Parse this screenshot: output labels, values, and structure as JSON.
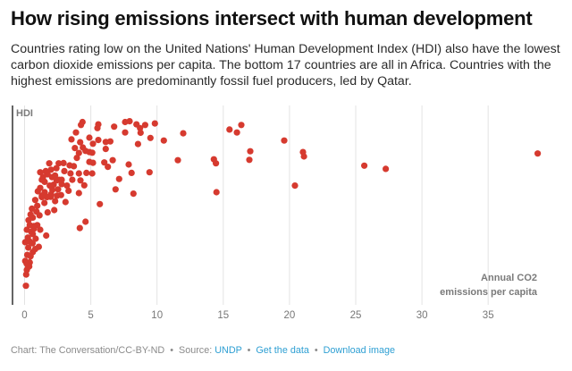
{
  "header": {
    "title": "How rising emissions intersect with human development",
    "description": "Countries rating low on the United Nations' Human Development Index (HDI) also have the lowest carbon dioxide emissions per capita. The bottom 17 countries are all in Africa. Countries with the highest emissions are predominantly fossil fuel producers, led by Qatar."
  },
  "footer": {
    "credit": "Chart: The Conversation/CC-BY-ND",
    "separator": "•",
    "source_label": "Source:",
    "source_link": "UNDP",
    "get_data_link": "Get the data",
    "download_link": "Download image"
  },
  "colors": {
    "point": "#d63a2f",
    "link": "#2e9fd3",
    "grid": "#e3e3e3",
    "axis": "#222222",
    "axis_label": "#7a7a7a"
  },
  "chart_data": {
    "type": "scatter",
    "title": "How rising emissions intersect with human development",
    "xlabel": "Annual CO2 emissions per capita",
    "xlabel_lines": [
      "Annual CO2",
      "emissions per capita"
    ],
    "ylabel": "HDI",
    "xlim": [
      -0.5,
      39.5
    ],
    "ylim": [
      0.33,
      1.005
    ],
    "x_ticks": [
      0,
      5,
      10,
      15,
      20,
      25,
      30,
      35
    ],
    "x_tick_labels": [
      "0",
      "5",
      "10",
      "15",
      "20",
      "25",
      "30",
      "35"
    ],
    "y_ticks": [],
    "grid": "vertical",
    "legend": "none",
    "points": [
      [
        4.37,
        0.96
      ],
      [
        4.26,
        0.95
      ],
      [
        5.57,
        0.952
      ],
      [
        5.5,
        0.939
      ],
      [
        6.76,
        0.944
      ],
      [
        7.59,
        0.96
      ],
      [
        7.93,
        0.963
      ],
      [
        7.59,
        0.924
      ],
      [
        8.45,
        0.952
      ],
      [
        8.72,
        0.939
      ],
      [
        9.1,
        0.95
      ],
      [
        9.84,
        0.955
      ],
      [
        8.76,
        0.923
      ],
      [
        9.5,
        0.905
      ],
      [
        8.56,
        0.884
      ],
      [
        10.51,
        0.896
      ],
      [
        11.98,
        0.921
      ],
      [
        15.47,
        0.934
      ],
      [
        16.03,
        0.924
      ],
      [
        16.36,
        0.95
      ],
      [
        19.6,
        0.896
      ],
      [
        17.04,
        0.859
      ],
      [
        16.97,
        0.829
      ],
      [
        11.57,
        0.828
      ],
      [
        14.29,
        0.831
      ],
      [
        14.45,
        0.817
      ],
      [
        14.49,
        0.717
      ],
      [
        3.54,
        0.9
      ],
      [
        3.88,
        0.924
      ],
      [
        4.89,
        0.906
      ],
      [
        5.16,
        0.885
      ],
      [
        5.57,
        0.898
      ],
      [
        6.13,
        0.891
      ],
      [
        6.47,
        0.893
      ],
      [
        6.13,
        0.867
      ],
      [
        4.4,
        0.872
      ],
      [
        4.1,
        0.853
      ],
      [
        4.89,
        0.856
      ],
      [
        5.11,
        0.854
      ],
      [
        3.95,
        0.836
      ],
      [
        4.89,
        0.822
      ],
      [
        5.16,
        0.819
      ],
      [
        6.02,
        0.82
      ],
      [
        6.29,
        0.805
      ],
      [
        6.65,
        0.828
      ],
      [
        7.86,
        0.813
      ],
      [
        8.08,
        0.784
      ],
      [
        9.43,
        0.786
      ],
      [
        7.14,
        0.763
      ],
      [
        6.87,
        0.727
      ],
      [
        8.22,
        0.712
      ],
      [
        5.68,
        0.676
      ],
      [
        4.6,
        0.615
      ],
      [
        4.17,
        0.593
      ],
      [
        3.72,
        0.807
      ],
      [
        3.47,
        0.782
      ],
      [
        4.1,
        0.782
      ],
      [
        4.67,
        0.784
      ],
      [
        5.11,
        0.782
      ],
      [
        4.22,
        0.758
      ],
      [
        4.51,
        0.741
      ],
      [
        4.1,
        0.714
      ],
      [
        3.32,
        0.722
      ],
      [
        3.09,
        0.683
      ],
      [
        2.53,
        0.727
      ],
      [
        2.75,
        0.707
      ],
      [
        2.19,
        0.743
      ],
      [
        1.86,
        0.817
      ],
      [
        2.58,
        0.817
      ],
      [
        2.94,
        0.818
      ],
      [
        1.18,
        0.786
      ],
      [
        1.74,
        0.779
      ],
      [
        2.08,
        0.769
      ],
      [
        2.42,
        0.758
      ],
      [
        1.52,
        0.753
      ],
      [
        1.18,
        0.732
      ],
      [
        1.52,
        0.717
      ],
      [
        1.97,
        0.701
      ],
      [
        2.31,
        0.686
      ],
      [
        1.74,
        0.647
      ],
      [
        2.24,
        0.655
      ],
      [
        0.96,
        0.67
      ],
      [
        1.13,
        0.637
      ],
      [
        0.62,
        0.629
      ],
      [
        0.39,
        0.603
      ],
      [
        0.96,
        0.603
      ],
      [
        1.18,
        0.587
      ],
      [
        1.63,
        0.567
      ],
      [
        0.17,
        0.587
      ],
      [
        0.62,
        0.572
      ],
      [
        0.05,
        0.544
      ],
      [
        0.39,
        0.546
      ],
      [
        0.84,
        0.556
      ],
      [
        1.07,
        0.528
      ],
      [
        0.28,
        0.525
      ],
      [
        0.62,
        0.51
      ],
      [
        0.05,
        0.479
      ],
      [
        0.39,
        0.474
      ],
      [
        0.28,
        0.458
      ],
      [
        0.17,
        0.448
      ],
      [
        0.12,
        0.432
      ],
      [
        0.1,
        0.393
      ],
      [
        1.4,
        0.77
      ],
      [
        1.6,
        0.79
      ],
      [
        2.0,
        0.795
      ],
      [
        2.3,
        0.775
      ],
      [
        2.6,
        0.76
      ],
      [
        2.8,
        0.745
      ],
      [
        1.3,
        0.76
      ],
      [
        1.9,
        0.74
      ],
      [
        2.1,
        0.725
      ],
      [
        2.45,
        0.705
      ],
      [
        1.7,
        0.7
      ],
      [
        1.3,
        0.705
      ],
      [
        1.0,
        0.72
      ],
      [
        0.8,
        0.69
      ],
      [
        0.55,
        0.66
      ],
      [
        0.45,
        0.64
      ],
      [
        0.7,
        0.6
      ],
      [
        0.3,
        0.62
      ],
      [
        0.5,
        0.58
      ],
      [
        0.25,
        0.56
      ],
      [
        0.6,
        0.54
      ],
      [
        0.2,
        0.5
      ],
      [
        0.45,
        0.495
      ],
      [
        0.15,
        0.47
      ],
      [
        0.35,
        0.46
      ],
      [
        0.8,
        0.52
      ],
      [
        1.3,
        0.7
      ],
      [
        2.8,
        0.76
      ],
      [
        3.0,
        0.79
      ],
      [
        3.2,
        0.74
      ],
      [
        2.4,
        0.8
      ],
      [
        3.6,
        0.76
      ],
      [
        3.8,
        0.87
      ],
      [
        4.2,
        0.89
      ],
      [
        4.6,
        0.86
      ],
      [
        3.4,
        0.81
      ],
      [
        2.0,
        0.71
      ],
      [
        1.5,
        0.68
      ],
      [
        0.9,
        0.65
      ],
      [
        0.7,
        0.59
      ],
      [
        21.02,
        0.856
      ],
      [
        21.09,
        0.841
      ],
      [
        20.41,
        0.74
      ],
      [
        25.65,
        0.809
      ],
      [
        27.27,
        0.798
      ],
      [
        38.74,
        0.851
      ]
    ]
  }
}
